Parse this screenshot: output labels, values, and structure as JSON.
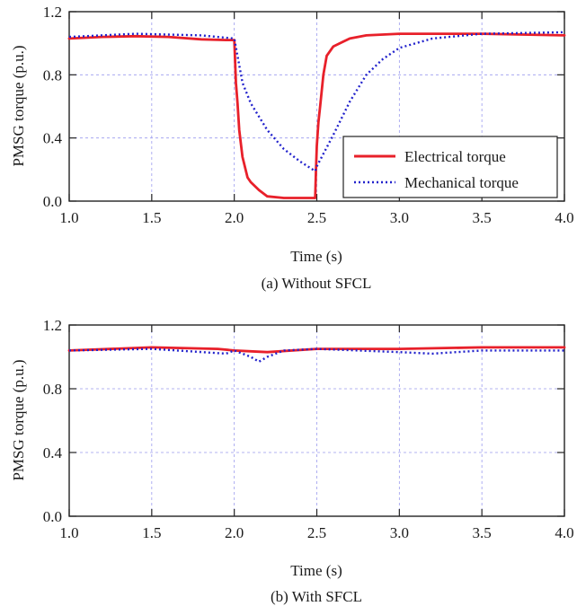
{
  "charts": [
    {
      "caption": "(a) Without SFCL",
      "xlabel": "Time (s)",
      "ylabel": "PMSG torque (p.u.)",
      "legend": [
        "Electrical torque",
        "Mechanical torque"
      ]
    },
    {
      "caption": "(b) With SFCL",
      "xlabel": "Time (s)",
      "ylabel": "PMSG torque (p.u.)"
    }
  ],
  "chart_data": [
    {
      "type": "line",
      "title": "",
      "caption": "(a) Without SFCL",
      "xlabel": "Time (s)",
      "ylabel": "PMSG torque (p.u.)",
      "xlim": [
        1.0,
        4.0
      ],
      "ylim": [
        0.0,
        1.2
      ],
      "xticks": [
        "1.0",
        "1.5",
        "2.0",
        "2.5",
        "3.0",
        "3.5",
        "4.0"
      ],
      "yticks": [
        "0.0",
        "0.4",
        "0.8",
        "1.2"
      ],
      "grid": true,
      "legend_position": "lower-right",
      "series": [
        {
          "name": "Electrical torque",
          "color": "#e8202a",
          "style": "solid",
          "x": [
            1.0,
            1.2,
            1.4,
            1.6,
            1.8,
            1.95,
            2.0,
            2.01,
            2.02,
            2.03,
            2.05,
            2.08,
            2.1,
            2.15,
            2.2,
            2.3,
            2.4,
            2.49,
            2.495,
            2.5,
            2.51,
            2.52,
            2.54,
            2.56,
            2.6,
            2.7,
            2.8,
            3.0,
            3.5,
            4.0
          ],
          "y": [
            1.03,
            1.04,
            1.045,
            1.04,
            1.025,
            1.02,
            1.02,
            0.75,
            0.62,
            0.45,
            0.28,
            0.15,
            0.12,
            0.07,
            0.03,
            0.02,
            0.02,
            0.02,
            0.2,
            0.35,
            0.5,
            0.6,
            0.8,
            0.92,
            0.98,
            1.03,
            1.05,
            1.06,
            1.06,
            1.05
          ]
        },
        {
          "name": "Mechanical torque",
          "color": "#2222cc",
          "style": "dotted",
          "x": [
            1.0,
            1.4,
            1.8,
            2.0,
            2.05,
            2.1,
            2.2,
            2.3,
            2.4,
            2.49,
            2.5,
            2.6,
            2.7,
            2.8,
            2.9,
            3.0,
            3.2,
            3.5,
            4.0
          ],
          "y": [
            1.04,
            1.06,
            1.05,
            1.03,
            0.75,
            0.62,
            0.45,
            0.33,
            0.25,
            0.19,
            0.22,
            0.42,
            0.63,
            0.8,
            0.9,
            0.97,
            1.03,
            1.06,
            1.07
          ]
        }
      ]
    },
    {
      "type": "line",
      "title": "",
      "caption": "(b) With SFCL",
      "xlabel": "Time (s)",
      "ylabel": "PMSG torque (p.u.)",
      "xlim": [
        1.0,
        4.0
      ],
      "ylim": [
        0.0,
        1.2
      ],
      "xticks": [
        "1.0",
        "1.5",
        "2.0",
        "2.5",
        "3.0",
        "3.5",
        "4.0"
      ],
      "yticks": [
        "0.0",
        "0.4",
        "0.8",
        "1.2"
      ],
      "grid": true,
      "series": [
        {
          "name": "Electrical torque",
          "color": "#e8202a",
          "style": "solid",
          "x": [
            1.0,
            1.5,
            1.9,
            2.0,
            2.1,
            2.2,
            2.5,
            3.0,
            3.5,
            4.0
          ],
          "y": [
            1.04,
            1.06,
            1.05,
            1.04,
            1.035,
            1.03,
            1.05,
            1.05,
            1.06,
            1.06
          ]
        },
        {
          "name": "Mechanical torque",
          "color": "#2222cc",
          "style": "dotted",
          "x": [
            1.0,
            1.5,
            1.95,
            2.0,
            2.05,
            2.1,
            2.15,
            2.2,
            2.3,
            2.5,
            3.0,
            3.2,
            3.5,
            4.0
          ],
          "y": [
            1.04,
            1.05,
            1.02,
            1.04,
            1.02,
            1.0,
            0.97,
            1.0,
            1.04,
            1.05,
            1.03,
            1.02,
            1.04,
            1.04
          ]
        }
      ]
    }
  ]
}
